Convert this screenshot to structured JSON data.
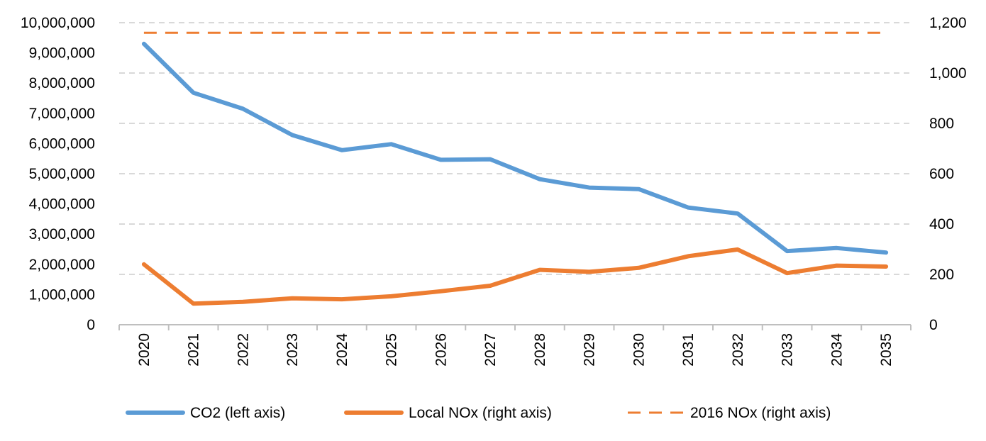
{
  "chart_data": {
    "type": "line",
    "x": [
      "2020",
      "2021",
      "2022",
      "2023",
      "2024",
      "2025",
      "2026",
      "2027",
      "2028",
      "2029",
      "2030",
      "2031",
      "2032",
      "2033",
      "2034",
      "2035"
    ],
    "series": [
      {
        "name": "CO2 (left axis)",
        "axis": "left",
        "color": "#5B9BD5",
        "style": "solid",
        "values": [
          9300000,
          7680000,
          7150000,
          6280000,
          5780000,
          5980000,
          5460000,
          5480000,
          4820000,
          4540000,
          4490000,
          3880000,
          3680000,
          2440000,
          2540000,
          2390000
        ]
      },
      {
        "name": "Local NOx (right axis)",
        "axis": "right",
        "color": "#ED7D31",
        "style": "solid",
        "values": [
          240,
          84,
          91,
          105,
          101,
          113,
          133,
          155,
          218,
          210,
          226,
          272,
          299,
          205,
          235,
          231
        ]
      },
      {
        "name": "2016 NOx (right axis)",
        "axis": "right",
        "color": "#ED7D31",
        "style": "dashed",
        "values": [
          1160,
          1160,
          1160,
          1160,
          1160,
          1160,
          1160,
          1160,
          1160,
          1160,
          1160,
          1160,
          1160,
          1160,
          1160,
          1160
        ]
      }
    ],
    "y_left": {
      "lim": [
        0,
        10000000
      ],
      "ticks": [
        "0",
        "1,000,000",
        "2,000,000",
        "3,000,000",
        "4,000,000",
        "5,000,000",
        "6,000,000",
        "7,000,000",
        "8,000,000",
        "9,000,000",
        "10,000,000"
      ]
    },
    "y_right": {
      "lim": [
        0,
        1200
      ],
      "ticks": [
        "0",
        "200",
        "400",
        "600",
        "800",
        "1,000",
        "1,200"
      ]
    },
    "grid": true,
    "legend_position": "bottom"
  }
}
